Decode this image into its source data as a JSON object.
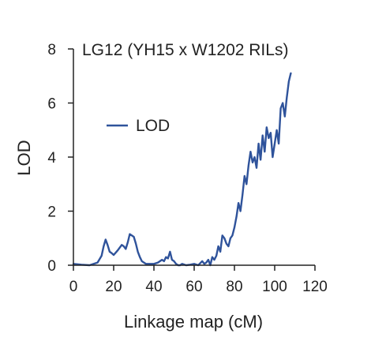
{
  "chart_data": {
    "type": "line",
    "title": "LG12 (YH15 x W1202 RILs)",
    "xlabel": "Linkage map (cM)",
    "ylabel": "LOD",
    "xlim": [
      0,
      120
    ],
    "ylim": [
      0,
      8
    ],
    "xticks": [
      0,
      20,
      40,
      60,
      80,
      100,
      120
    ],
    "yticks": [
      0,
      2,
      4,
      6,
      8
    ],
    "legend_position": "center-left",
    "series": [
      {
        "name": "LOD",
        "color": "#2f539b",
        "x": [
          0,
          4,
          8,
          12,
          14,
          15,
          16,
          17,
          18,
          19,
          20,
          22,
          24,
          25,
          26,
          27,
          28,
          29,
          30,
          31,
          32,
          33,
          34,
          35,
          36,
          38,
          40,
          42,
          44,
          45,
          46,
          47,
          48,
          49,
          50,
          51,
          52,
          53,
          54,
          56,
          58,
          60,
          62,
          64,
          65,
          66,
          67,
          68,
          69,
          70,
          71,
          72,
          73,
          74,
          75,
          76,
          77,
          78,
          79,
          80,
          81,
          82,
          83,
          84,
          85,
          86,
          87,
          88,
          89,
          90,
          91,
          92,
          93,
          94,
          95,
          96,
          97,
          98,
          99,
          100,
          101,
          102,
          103,
          104,
          105,
          106,
          107,
          108
        ],
        "y": [
          0.05,
          0.02,
          0.0,
          0.1,
          0.35,
          0.7,
          0.95,
          0.75,
          0.5,
          0.45,
          0.38,
          0.55,
          0.75,
          0.7,
          0.6,
          0.85,
          1.15,
          1.1,
          1.05,
          0.8,
          0.5,
          0.3,
          0.15,
          0.1,
          0.05,
          0.05,
          0.05,
          0.1,
          0.2,
          0.15,
          0.3,
          0.25,
          0.5,
          0.2,
          0.15,
          0.05,
          0.0,
          0.0,
          0.05,
          0.0,
          0.02,
          0.05,
          0.0,
          0.15,
          0.05,
          0.1,
          0.2,
          0.0,
          0.3,
          0.2,
          0.35,
          0.7,
          0.5,
          1.1,
          1.0,
          0.8,
          0.7,
          1.0,
          1.1,
          1.4,
          1.8,
          2.3,
          2.0,
          2.6,
          3.3,
          3.0,
          3.7,
          4.2,
          3.8,
          4.0,
          3.6,
          4.5,
          3.9,
          4.8,
          4.2,
          5.1,
          4.7,
          4.9,
          4.0,
          4.5,
          5.0,
          4.5,
          5.8,
          6.0,
          5.5,
          6.2,
          6.8,
          7.1
        ]
      }
    ]
  }
}
